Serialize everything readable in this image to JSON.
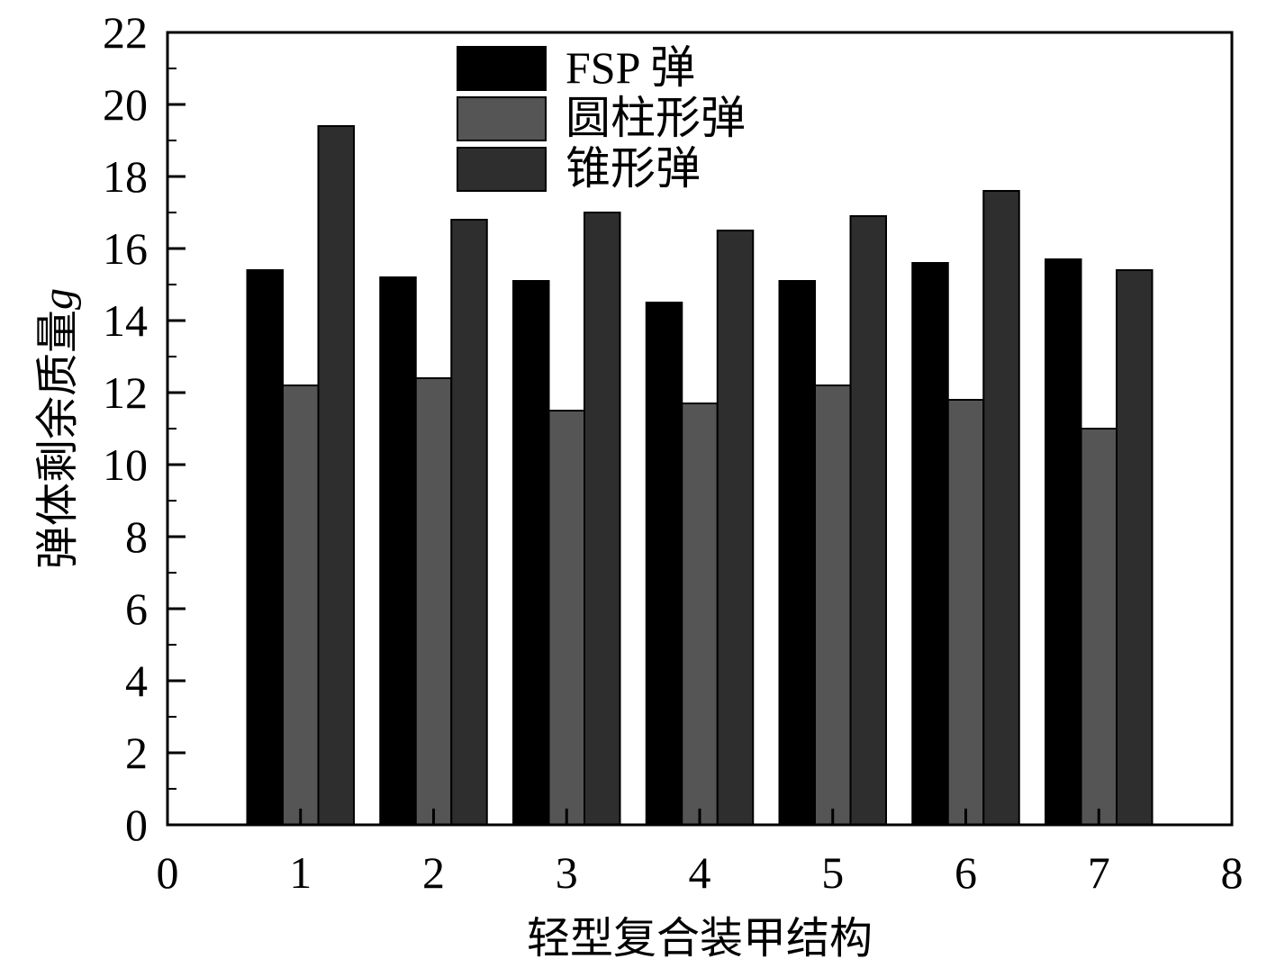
{
  "chart_data": {
    "type": "bar",
    "title": "",
    "xlabel": "轻型复合装甲结构",
    "ylabel": "弹体剩余质量",
    "ylabel_unit": "g",
    "categories": [
      "1",
      "2",
      "3",
      "4",
      "5",
      "6",
      "7"
    ],
    "x_positions": [
      1,
      2,
      3,
      4,
      5,
      6,
      7
    ],
    "xlim": [
      0,
      8
    ],
    "ylim": [
      0,
      22
    ],
    "xticks": [
      "0",
      "1",
      "2",
      "3",
      "4",
      "5",
      "6",
      "7",
      "8"
    ],
    "yticks": [
      "0",
      "2",
      "4",
      "6",
      "8",
      "10",
      "12",
      "14",
      "16",
      "18",
      "20",
      "22"
    ],
    "grid": false,
    "legend_position": "top-center",
    "series": [
      {
        "name": "FSP 弹",
        "color": "#000000",
        "values": [
          15.4,
          15.2,
          15.1,
          14.5,
          15.1,
          15.6,
          15.7
        ]
      },
      {
        "name": "圆柱形弹",
        "color": "#555555",
        "values": [
          12.2,
          12.4,
          11.5,
          11.7,
          12.2,
          11.8,
          11.0
        ]
      },
      {
        "name": "锥形弹",
        "color": "#2e2e2e",
        "values": [
          19.4,
          16.8,
          17.0,
          16.5,
          16.9,
          17.6,
          15.4
        ]
      }
    ]
  }
}
